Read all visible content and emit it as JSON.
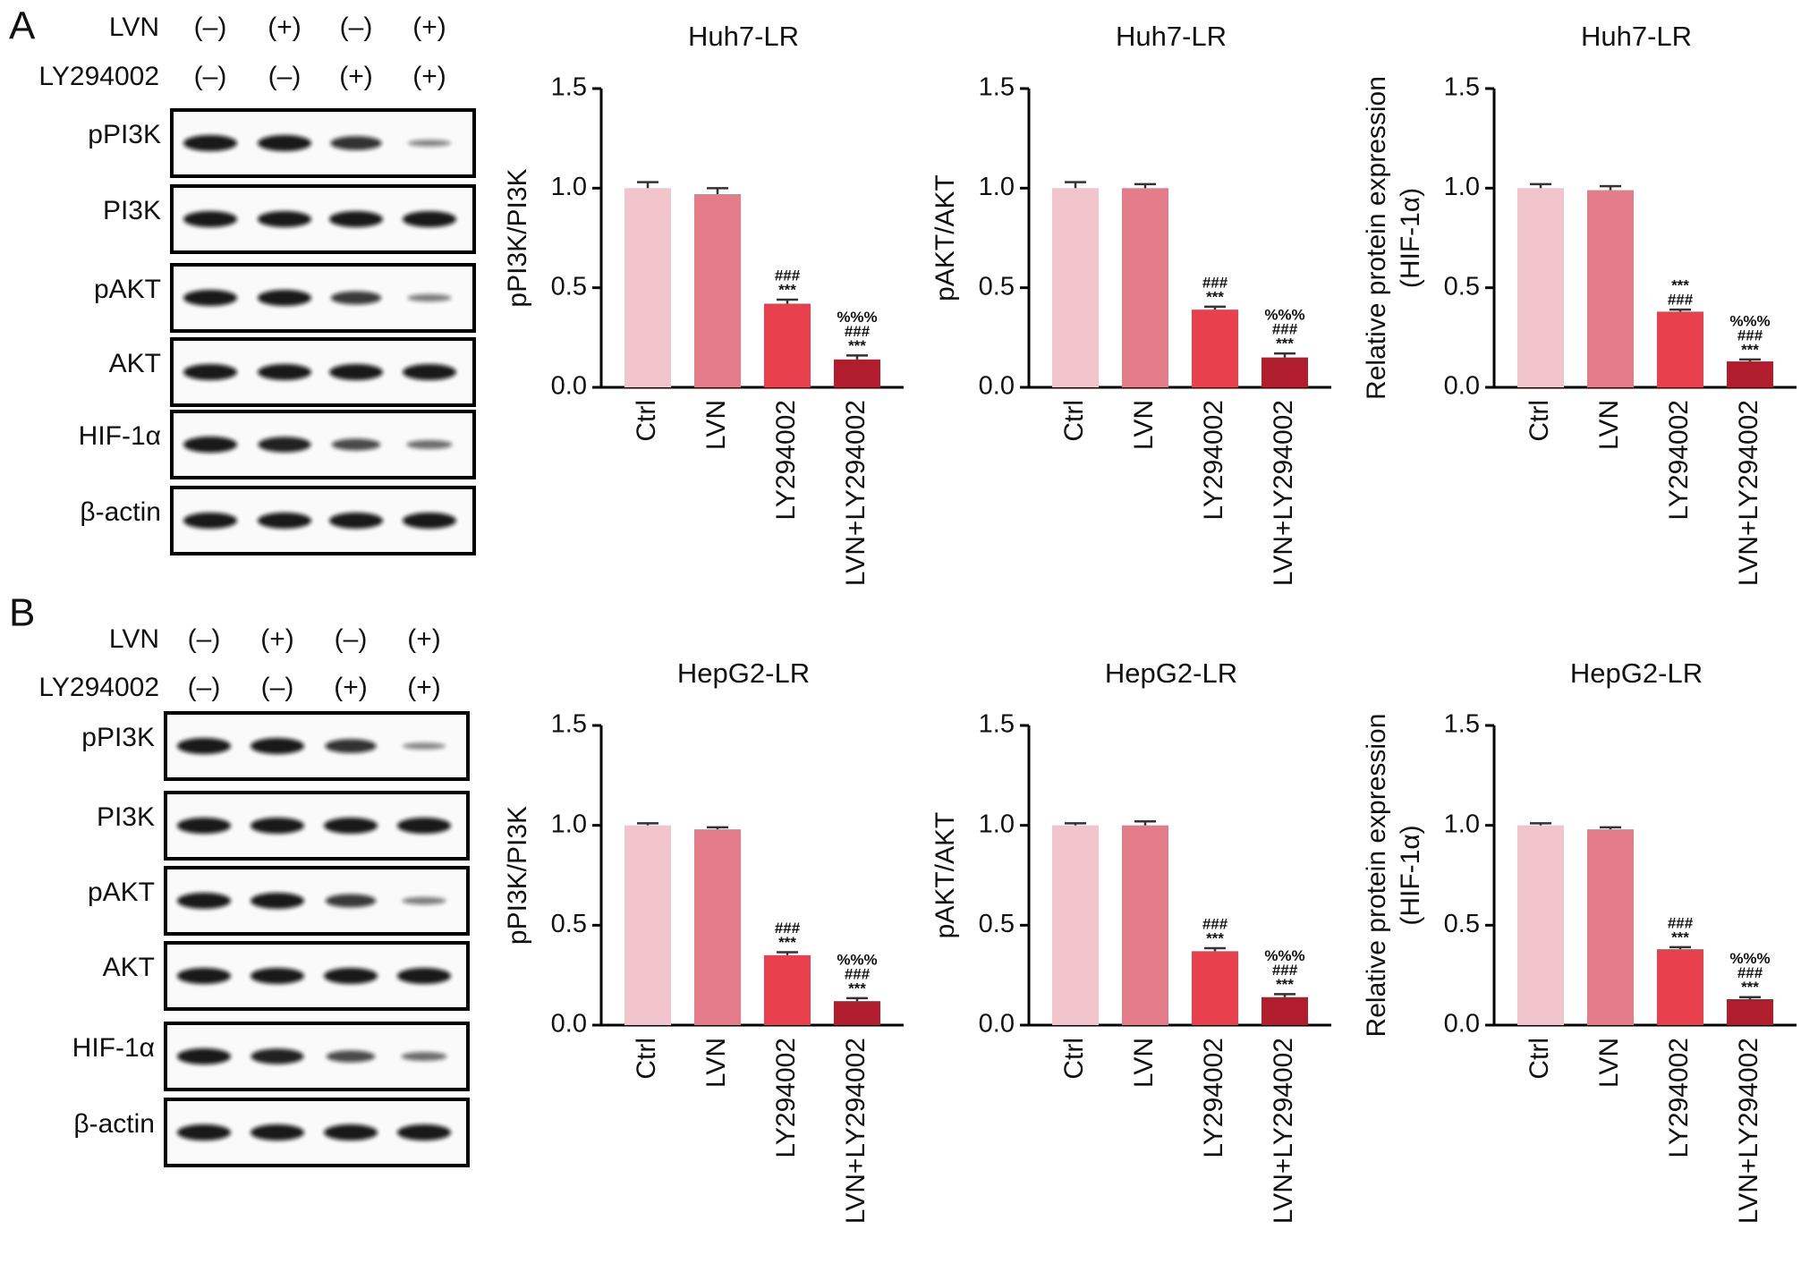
{
  "panels": [
    {
      "label": "A",
      "treatments": [
        {
          "name": "LVN",
          "signs": [
            "(–)",
            "(+)",
            "(–)",
            "(+)"
          ]
        },
        {
          "name": "LY294002",
          "signs": [
            "(–)",
            "(–)",
            "(+)",
            "(+)"
          ]
        }
      ],
      "blots": [
        "pPI3K",
        "PI3K",
        "pAKT",
        "AKT",
        "HIF-1α",
        "β-actin"
      ]
    },
    {
      "label": "B",
      "treatments": [
        {
          "name": "LVN",
          "signs": [
            "(–)",
            "(+)",
            "(–)",
            "(+)"
          ]
        },
        {
          "name": "LY294002",
          "signs": [
            "(–)",
            "(–)",
            "(+)",
            "(+)"
          ]
        }
      ],
      "blots": [
        "pPI3K",
        "PI3K",
        "pAKT",
        "AKT",
        "HIF-1α",
        "β-actin"
      ]
    }
  ],
  "chart_data": [
    {
      "type": "bar",
      "title": "Huh7-LR",
      "ylabel": [
        "pPI3K/PI3K"
      ],
      "categories": [
        "Ctrl",
        "LVN",
        "LY294002",
        "LVN+LY294002"
      ],
      "values": [
        1.0,
        0.97,
        0.42,
        0.14
      ],
      "errors": [
        0.03,
        0.03,
        0.02,
        0.02
      ],
      "colors": [
        "#f2c4cb",
        "#e57c8a",
        "#e8404c",
        "#b21d2e"
      ],
      "annotations": [
        [],
        [],
        [
          "###",
          "***"
        ],
        [
          "%%%",
          "###",
          "***"
        ]
      ],
      "ylim": [
        0,
        1.5
      ],
      "yticks": [
        {
          "value": 0,
          "label": "0.0"
        },
        0.5,
        {
          "value": 1,
          "label": "1.0"
        },
        1.5
      ]
    },
    {
      "type": "bar",
      "title": "Huh7-LR",
      "ylabel": [
        "pAKT/AKT"
      ],
      "categories": [
        "Ctrl",
        "LVN",
        "LY294002",
        "LVN+LY294002"
      ],
      "values": [
        1.0,
        1.0,
        0.39,
        0.15
      ],
      "errors": [
        0.03,
        0.02,
        0.015,
        0.02
      ],
      "colors": [
        "#f2c4cb",
        "#e57c8a",
        "#e8404c",
        "#b21d2e"
      ],
      "annotations": [
        [],
        [],
        [
          "###",
          "***"
        ],
        [
          "%%%",
          "###",
          "***"
        ]
      ],
      "ylim": [
        0,
        1.5
      ],
      "yticks": [
        {
          "value": 0,
          "label": "0.0"
        },
        0.5,
        {
          "value": 1,
          "label": "1.0"
        },
        1.5
      ]
    },
    {
      "type": "bar",
      "title": "Huh7-LR",
      "ylabel": [
        "Relative protein expression",
        "(HIF-1α)"
      ],
      "categories": [
        "Ctrl",
        "LVN",
        "LY294002",
        "LVN+LY294002"
      ],
      "values": [
        1.0,
        0.99,
        0.38,
        0.13
      ],
      "errors": [
        0.02,
        0.02,
        0.01,
        0.01
      ],
      "colors": [
        "#f2c4cb",
        "#e57c8a",
        "#e8404c",
        "#b21d2e"
      ],
      "annotations": [
        [],
        [],
        [
          "***",
          "###"
        ],
        [
          "%%%",
          "###",
          "***"
        ]
      ],
      "ylim": [
        0,
        1.5
      ],
      "yticks": [
        {
          "value": 0,
          "label": "0.0"
        },
        0.5,
        {
          "value": 1,
          "label": "1.0"
        },
        1.5
      ]
    },
    {
      "type": "bar",
      "title": "HepG2-LR",
      "ylabel": [
        "pPI3K/PI3K"
      ],
      "categories": [
        "Ctrl",
        "LVN",
        "LY294002",
        "LVN+LY294002"
      ],
      "values": [
        1.0,
        0.98,
        0.35,
        0.12
      ],
      "errors": [
        0.01,
        0.01,
        0.015,
        0.015
      ],
      "colors": [
        "#f2c4cb",
        "#e57c8a",
        "#e8404c",
        "#b21d2e"
      ],
      "annotations": [
        [],
        [],
        [
          "###",
          "***"
        ],
        [
          "%%%",
          "###",
          "***"
        ]
      ],
      "ylim": [
        0,
        1.5
      ],
      "yticks": [
        {
          "value": 0,
          "label": "0.0"
        },
        0.5,
        {
          "value": 1,
          "label": "1.0"
        },
        1.5
      ]
    },
    {
      "type": "bar",
      "title": "HepG2-LR",
      "ylabel": [
        "pAKT/AKT"
      ],
      "categories": [
        "Ctrl",
        "LVN",
        "LY294002",
        "LVN+LY294002"
      ],
      "values": [
        1.0,
        1.0,
        0.37,
        0.14
      ],
      "errors": [
        0.01,
        0.02,
        0.015,
        0.015
      ],
      "colors": [
        "#f2c4cb",
        "#e57c8a",
        "#e8404c",
        "#b21d2e"
      ],
      "annotations": [
        [],
        [],
        [
          "###",
          "***"
        ],
        [
          "%%%",
          "###",
          "***"
        ]
      ],
      "ylim": [
        0,
        1.5
      ],
      "yticks": [
        {
          "value": 0,
          "label": "0.0"
        },
        0.5,
        {
          "value": 1,
          "label": "1.0"
        },
        1.5
      ]
    },
    {
      "type": "bar",
      "title": "HepG2-LR",
      "ylabel": [
        "Relative protein expression",
        "(HIF-1α)"
      ],
      "categories": [
        "Ctrl",
        "LVN",
        "LY294002",
        "LVN+LY294002"
      ],
      "values": [
        1.0,
        0.98,
        0.38,
        0.13
      ],
      "errors": [
        0.01,
        0.01,
        0.01,
        0.01
      ],
      "colors": [
        "#f2c4cb",
        "#e57c8a",
        "#e8404c",
        "#b21d2e"
      ],
      "annotations": [
        [],
        [],
        [
          "###",
          "***"
        ],
        [
          "%%%",
          "###",
          "***"
        ]
      ],
      "ylim": [
        0,
        1.5
      ],
      "yticks": [
        {
          "value": 0,
          "label": "0.0"
        },
        0.5,
        {
          "value": 1,
          "label": "1.0"
        },
        1.5
      ]
    }
  ]
}
